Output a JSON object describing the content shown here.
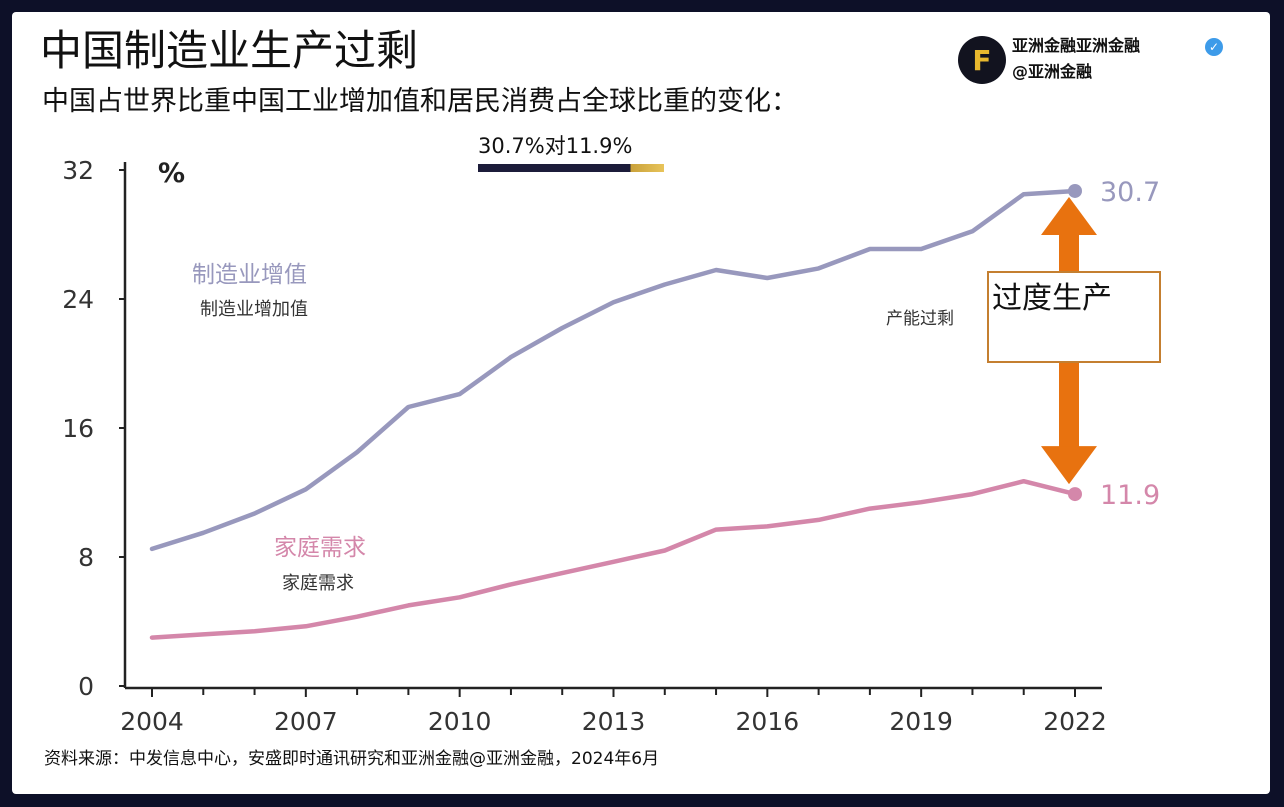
{
  "title": "中国制造业生产过剩",
  "subtitle": "中国占世界比重中国工业增加值和居民消费占全球比重的变化：",
  "ratio_label": "30.7%对11.9%",
  "brand": {
    "name": "亚洲金融亚洲金融",
    "handle": "@亚洲金融",
    "logo_letter": "F",
    "verified_icon": "✓"
  },
  "source": "资料来源：中发信息中心，安盛即时通讯研究和亚洲金融@亚洲金融，2024年6月",
  "chart_data": {
    "type": "line",
    "ylabel": "%",
    "ylim": [
      0,
      32
    ],
    "yticks": [
      "0",
      "8",
      "16",
      "24",
      "32"
    ],
    "xticks": [
      "2004",
      "2007",
      "2010",
      "2013",
      "2016",
      "2019",
      "2022"
    ],
    "grid": false,
    "series": [
      {
        "name": "制造业增值",
        "name_sub": "制造业增加值",
        "color": "#9898bd",
        "end_label": "30.7",
        "x": [
          2004,
          2005,
          2006,
          2007,
          2008,
          2009,
          2010,
          2011,
          2012,
          2013,
          2014,
          2015,
          2016,
          2017,
          2018,
          2019,
          2020,
          2021,
          2022
        ],
        "y": [
          8.5,
          9.5,
          10.7,
          12.2,
          14.5,
          17.3,
          18.1,
          20.4,
          22.2,
          23.8,
          24.9,
          25.8,
          25.3,
          25.9,
          27.1,
          27.1,
          28.2,
          30.5,
          30.7
        ]
      },
      {
        "name": "家庭需求",
        "name_sub": "家庭需求",
        "color": "#d487aa",
        "end_label": "11.9",
        "x": [
          2004,
          2005,
          2006,
          2007,
          2008,
          2009,
          2010,
          2011,
          2012,
          2013,
          2014,
          2015,
          2016,
          2017,
          2018,
          2019,
          2020,
          2021,
          2022
        ],
        "y": [
          3.0,
          3.2,
          3.4,
          3.7,
          4.3,
          5.0,
          5.5,
          6.3,
          7.0,
          7.7,
          8.4,
          9.7,
          9.9,
          10.3,
          11.0,
          11.4,
          11.9,
          12.7,
          11.9
        ]
      }
    ],
    "annotations": {
      "arrow_color": "#e8720f",
      "box_label": "过度生产",
      "side_label": "产能过剩"
    }
  }
}
